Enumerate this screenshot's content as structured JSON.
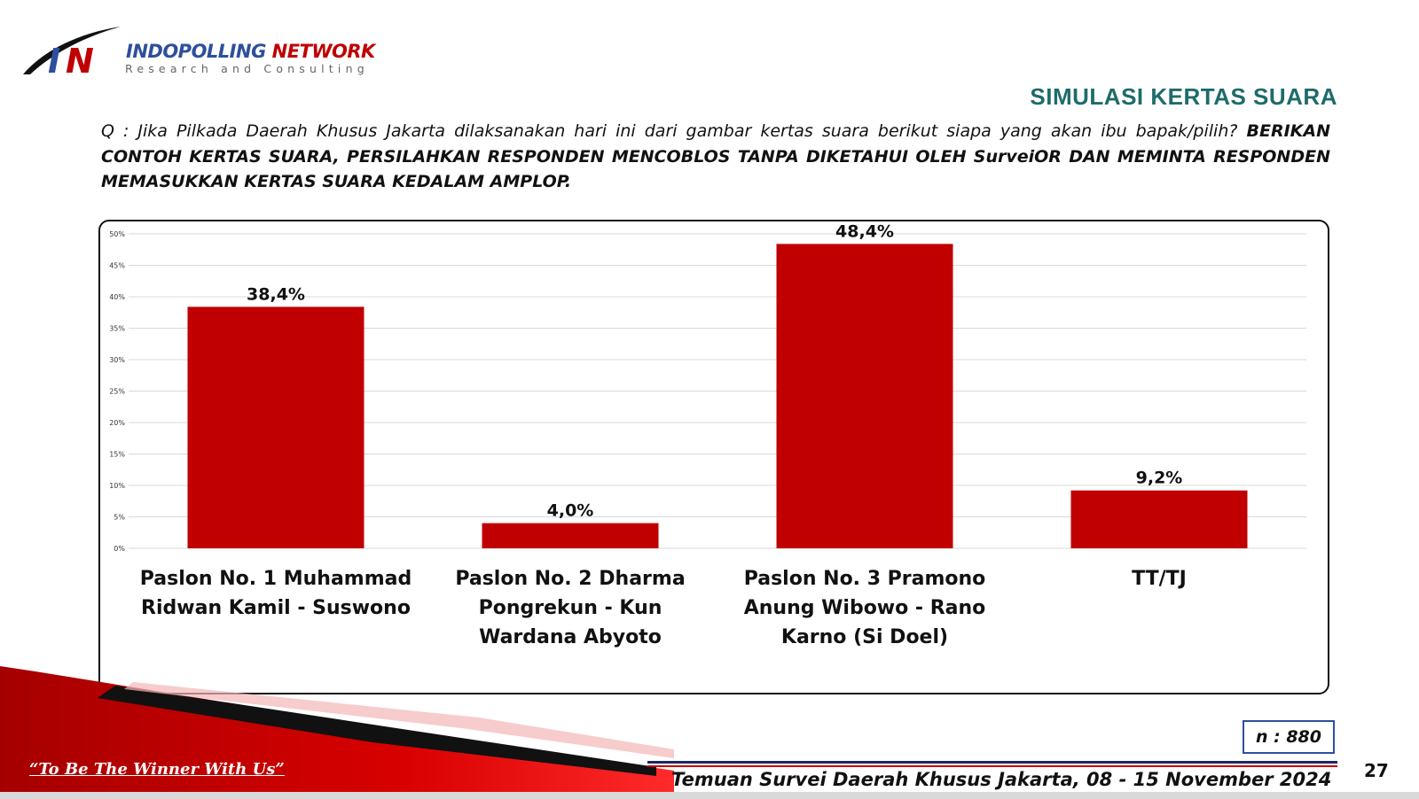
{
  "brand": {
    "logo_mark": "IN",
    "name": "INDOPOLLING NETWORK",
    "name_part1": "INDOPOLLING",
    "name_part2": "NETWORK",
    "subtitle": "Research and Consulting",
    "colors": {
      "primary": "#2d4f9e",
      "accent": "#c00000"
    }
  },
  "slide_title": "SIMULASI KERTAS SUARA",
  "question": {
    "plain": "Q : Jika Pilkada Daerah Khusus Jakarta dilaksanakan hari ini dari gambar kertas suara berikut siapa yang akan ibu bapak/pilih?",
    "bold": "BERIKAN CONTOH KERTAS SUARA, PERSILAHKAN RESPONDEN  MENCOBLOS TANPA DIKETAHUI OLEH SurveiOR DAN MEMINTA RESPONDEN MEMASUKKAN KERTAS SUARA KEDALAM AMPLOP."
  },
  "chart_data": {
    "type": "bar",
    "categories": [
      "Paslon No. 1 Muhammad Ridwan Kamil - Suswono",
      "Paslon No. 2 Dharma Pongrekun - Kun Wardana Abyoto",
      "Paslon No. 3 Pramono Anung Wibowo - Rano Karno (Si Doel)",
      "TT/TJ"
    ],
    "values": [
      38.4,
      4.0,
      48.4,
      9.2
    ],
    "data_labels": [
      "38,4%",
      "4,0%",
      "48,4%",
      "9,2%"
    ],
    "ylim": [
      0,
      50
    ],
    "yticks": [
      0,
      5,
      10,
      15,
      20,
      25,
      30,
      35,
      40,
      45,
      50
    ],
    "ytick_labels": [
      "0%",
      "5%",
      "10%",
      "15%",
      "20%",
      "25%",
      "30%",
      "35%",
      "40%",
      "45%",
      "50%"
    ],
    "grid": true,
    "bar_color": "#c00000",
    "xlabel": "",
    "ylabel": ""
  },
  "sample_size": "n : 880",
  "tagline": "“To Be The Winner With Us”",
  "footer_text": "Temuan Survei Daerah Khusus Jakarta,  08 - 15 November 2024",
  "page_number": "27"
}
